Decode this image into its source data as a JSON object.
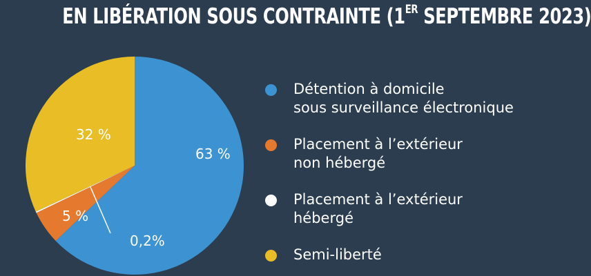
{
  "title": {
    "prefix": "EN LIBÉRATION SOUS CONTRAINTE (1",
    "superscript": "ER",
    "suffix": " SEPTEMBRE 2023)"
  },
  "colors": {
    "background": "#2b3d4f",
    "blue": "#3d93d2",
    "orange": "#e57a2e",
    "white": "#ffffff",
    "yellow": "#e9bd25"
  },
  "chart_data": {
    "type": "pie",
    "slices": [
      {
        "label": "Détention à domicile sous surveillance électronique",
        "value": 63,
        "value_label": "63 %",
        "color": "#3d93d2"
      },
      {
        "label": "Placement à l’extérieur non hébergé",
        "value": 5,
        "value_label": "5 %",
        "color": "#e57a2e"
      },
      {
        "label": "Placement à l’extérieur hébergé",
        "value": 0.2,
        "value_label": "0,2%",
        "color": "#ffffff"
      },
      {
        "label": "Semi-liberté",
        "value": 32,
        "value_label": "32 %",
        "color": "#e9bd25"
      }
    ]
  },
  "legend": {
    "items": [
      {
        "lines": [
          "Détention à domicile",
          "sous surveillance électronique"
        ],
        "color": "#3d93d2"
      },
      {
        "lines": [
          "Placement à l’extérieur",
          "non hébergé"
        ],
        "color": "#e57a2e"
      },
      {
        "lines": [
          "Placement à l’extérieur",
          "hébergé"
        ],
        "color": "#ffffff"
      },
      {
        "lines": [
          "Semi-liberté"
        ],
        "color": "#e9bd25"
      }
    ]
  }
}
